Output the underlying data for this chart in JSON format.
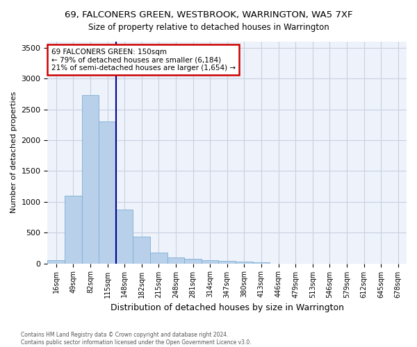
{
  "title": "69, FALCONERS GREEN, WESTBROOK, WARRINGTON, WA5 7XF",
  "subtitle": "Size of property relative to detached houses in Warrington",
  "xlabel": "Distribution of detached houses by size in Warrington",
  "ylabel": "Number of detached properties",
  "categories": [
    "16sqm",
    "49sqm",
    "82sqm",
    "115sqm",
    "148sqm",
    "182sqm",
    "215sqm",
    "248sqm",
    "281sqm",
    "314sqm",
    "347sqm",
    "380sqm",
    "413sqm",
    "446sqm",
    "479sqm",
    "513sqm",
    "546sqm",
    "579sqm",
    "612sqm",
    "645sqm",
    "678sqm"
  ],
  "values": [
    50,
    1100,
    2730,
    2300,
    875,
    430,
    170,
    100,
    70,
    55,
    35,
    25,
    20,
    0,
    0,
    0,
    0,
    0,
    0,
    0,
    0
  ],
  "bar_color": "#b8d0ea",
  "bar_edge_color": "#7bafd4",
  "annotation_text1": "69 FALCONERS GREEN: 150sqm",
  "annotation_text2": "← 79% of detached houses are smaller (6,184)",
  "annotation_text3": "21% of semi-detached houses are larger (1,654) →",
  "annotation_box_color": "#ffffff",
  "annotation_box_edge": "#cc0000",
  "vline_color": "#00008b",
  "background_color": "#eef2fb",
  "grid_color": "#c8d0e0",
  "ylim": [
    0,
    3600
  ],
  "yticks": [
    0,
    500,
    1000,
    1500,
    2000,
    2500,
    3000,
    3500
  ],
  "footer1": "Contains HM Land Registry data © Crown copyright and database right 2024.",
  "footer2": "Contains public sector information licensed under the Open Government Licence v3.0.",
  "vline_x": 4.0
}
